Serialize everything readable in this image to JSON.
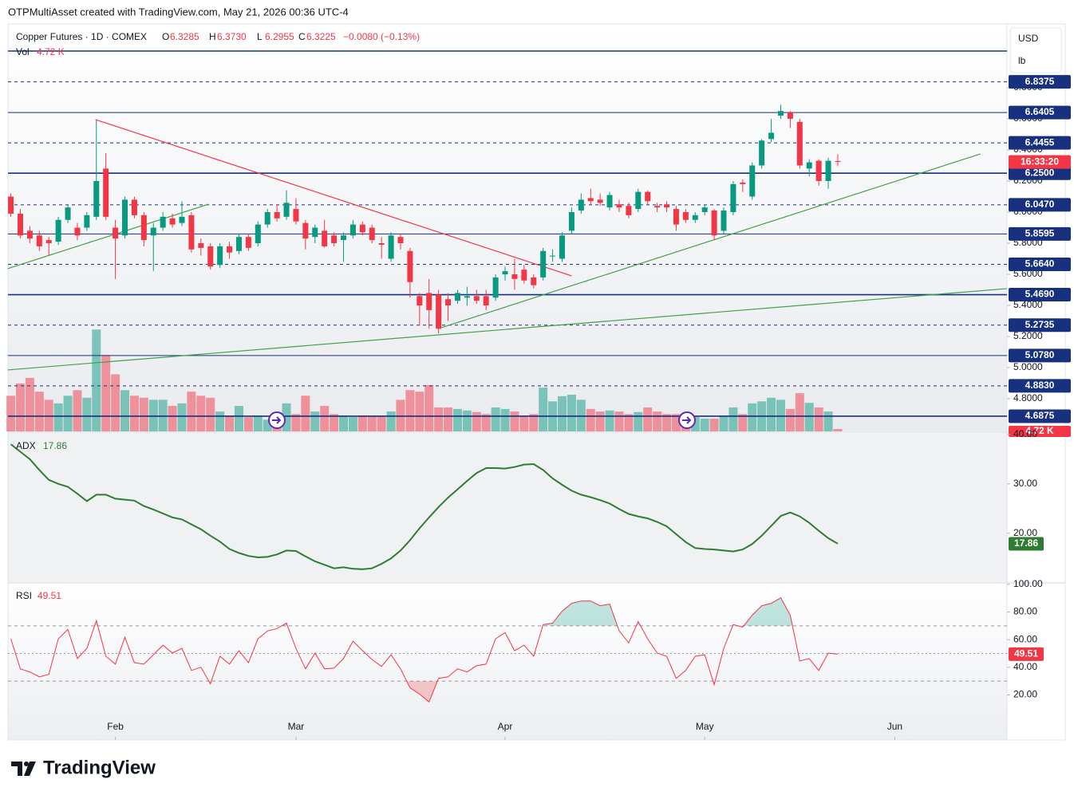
{
  "header": {
    "credit": "OTPMultiAsset created with TradingView.com, May 21, 2026 00:36 UTC-4",
    "symbol": "Copper Futures · 1D · COMEX",
    "ohlc": [
      {
        "key": "O",
        "value": "6.3285"
      },
      {
        "key": "H",
        "value": "6.3730"
      },
      {
        "key": "L",
        "value": "6.2955"
      },
      {
        "key": "C",
        "value": "6.3225"
      }
    ],
    "change": "−0.0080 (−0.13%)",
    "currency": "USD",
    "unit": "lb",
    "countdown": "16:33:20",
    "logo": "TradingView"
  },
  "chart_data": [
    {
      "type": "candlestick",
      "up_color": "#089981",
      "down_color": "#f23645",
      "ylim": [
        4.59,
        7.21
      ],
      "xlim": [
        -0.3,
        104.8
      ],
      "yticks": [
        {
          "value": 4.8,
          "label": "4.8000"
        },
        {
          "value": 5.0,
          "label": "5.0000"
        },
        {
          "value": 5.2,
          "label": "5.2000"
        },
        {
          "value": 5.4,
          "label": "5.4000"
        },
        {
          "value": 5.6,
          "label": "5.6000"
        },
        {
          "value": 5.8,
          "label": "5.8000"
        },
        {
          "value": 6.0,
          "label": "6.0000"
        },
        {
          "value": 6.2,
          "label": "6.2000"
        },
        {
          "value": 6.4,
          "label": "6.4000"
        },
        {
          "value": 6.6,
          "label": "6.6000"
        },
        {
          "value": 6.8,
          "label": "6.8000"
        }
      ],
      "xticks": [
        {
          "value": 11,
          "label": "Feb"
        },
        {
          "value": 30,
          "label": "Mar"
        },
        {
          "value": 52,
          "label": "Apr"
        },
        {
          "value": 73,
          "label": "May"
        },
        {
          "value": 93,
          "label": "Jun"
        }
      ],
      "level_color": "#17317f",
      "levels": [
        {
          "value": 6.8375,
          "style": "dashed"
        },
        {
          "value": 6.6405,
          "style": "solid"
        },
        {
          "value": 6.4455,
          "style": "dashed"
        },
        {
          "value": 6.25,
          "label": "6.2500",
          "style": "bold"
        },
        {
          "value": 6.047,
          "label": "6.0470",
          "style": "dashed"
        },
        {
          "value": 5.8595,
          "style": "solid"
        },
        {
          "value": 5.664,
          "label": "5.6640",
          "style": "dashed"
        },
        {
          "value": 5.469,
          "label": "5.4690",
          "style": "bold"
        },
        {
          "value": 5.2735,
          "style": "dashed"
        },
        {
          "value": 5.078,
          "label": "5.0780",
          "style": "solid"
        },
        {
          "value": 4.883,
          "label": "4.8830",
          "style": "dashed"
        },
        {
          "value": 4.6875,
          "style": "bold"
        }
      ],
      "trendlines": [
        {
          "color": "#f23645",
          "from": [
            8.9,
            6.595
          ],
          "to": [
            59,
            5.59
          ]
        },
        {
          "color": "#43a047",
          "from": [
            -0.34,
            5.636
          ],
          "to": [
            20.8,
            6.051
          ]
        },
        {
          "color": "#43a047",
          "from": [
            45,
            5.251
          ],
          "to": [
            102,
            6.374
          ]
        },
        {
          "color": "#43a047",
          "from": [
            -0.34,
            4.985
          ],
          "to": [
            104.8,
            5.508
          ]
        }
      ],
      "ohlc": [
        [
          6.1,
          6.12,
          5.97,
          5.99
        ],
        [
          5.99,
          6.02,
          5.83,
          5.85
        ],
        [
          5.88,
          5.91,
          5.8,
          5.83
        ],
        [
          5.85,
          5.88,
          5.75,
          5.78
        ],
        [
          5.82,
          5.84,
          5.72,
          5.8
        ],
        [
          5.81,
          5.97,
          5.79,
          5.95
        ],
        [
          5.95,
          6.05,
          5.93,
          6.03
        ],
        [
          5.9,
          5.93,
          5.82,
          5.85
        ],
        [
          5.9,
          6.0,
          5.88,
          5.98
        ],
        [
          5.97,
          6.59,
          5.95,
          6.2
        ],
        [
          6.28,
          6.38,
          5.95,
          5.97
        ],
        [
          5.9,
          5.95,
          5.57,
          5.83
        ],
        [
          5.85,
          6.1,
          5.83,
          6.08
        ],
        [
          6.08,
          6.1,
          5.96,
          5.98
        ],
        [
          5.98,
          6.0,
          5.78,
          5.82
        ],
        [
          5.85,
          5.93,
          5.62,
          5.9
        ],
        [
          5.9,
          6.0,
          5.88,
          5.97
        ],
        [
          5.96,
          5.99,
          5.9,
          5.92
        ],
        [
          5.93,
          6.07,
          5.91,
          5.97
        ],
        [
          5.98,
          6.0,
          5.74,
          5.76
        ],
        [
          5.8,
          5.83,
          5.72,
          5.77
        ],
        [
          5.78,
          5.8,
          5.63,
          5.65
        ],
        [
          5.66,
          5.8,
          5.64,
          5.78
        ],
        [
          5.78,
          5.81,
          5.7,
          5.74
        ],
        [
          5.75,
          5.86,
          5.73,
          5.84
        ],
        [
          5.84,
          5.86,
          5.75,
          5.77
        ],
        [
          5.8,
          5.94,
          5.78,
          5.92
        ],
        [
          5.92,
          6.02,
          5.9,
          6.0
        ],
        [
          6.0,
          6.05,
          5.94,
          5.96
        ],
        [
          5.97,
          6.14,
          5.95,
          6.06
        ],
        [
          6.02,
          6.09,
          5.92,
          5.94
        ],
        [
          5.93,
          5.95,
          5.76,
          5.83
        ],
        [
          5.84,
          5.92,
          5.8,
          5.9
        ],
        [
          5.88,
          5.95,
          5.77,
          5.78
        ],
        [
          5.85,
          5.87,
          5.78,
          5.8
        ],
        [
          5.82,
          5.87,
          5.68,
          5.85
        ],
        [
          5.85,
          5.95,
          5.83,
          5.92
        ],
        [
          5.92,
          5.94,
          5.85,
          5.87
        ],
        [
          5.9,
          5.92,
          5.8,
          5.82
        ],
        [
          5.8,
          5.84,
          5.7,
          5.79
        ],
        [
          5.7,
          5.87,
          5.68,
          5.85
        ],
        [
          5.84,
          5.86,
          5.76,
          5.8
        ],
        [
          5.75,
          5.77,
          5.45,
          5.55
        ],
        [
          5.46,
          5.48,
          5.27,
          5.4
        ],
        [
          5.48,
          5.57,
          5.25,
          5.37
        ],
        [
          5.47,
          5.5,
          5.22,
          5.25
        ],
        [
          5.44,
          5.48,
          5.3,
          5.4
        ],
        [
          5.43,
          5.5,
          5.41,
          5.48
        ],
        [
          5.45,
          5.52,
          5.4,
          5.46
        ],
        [
          5.46,
          5.5,
          5.41,
          5.43
        ],
        [
          5.46,
          5.5,
          5.37,
          5.4
        ],
        [
          5.45,
          5.6,
          5.43,
          5.58
        ],
        [
          5.6,
          5.65,
          5.56,
          5.62
        ],
        [
          5.6,
          5.7,
          5.5,
          5.57
        ],
        [
          5.63,
          5.66,
          5.54,
          5.56
        ],
        [
          5.58,
          5.6,
          5.51,
          5.53
        ],
        [
          5.58,
          5.77,
          5.56,
          5.75
        ],
        [
          5.72,
          5.76,
          5.68,
          5.72
        ],
        [
          5.7,
          5.87,
          5.68,
          5.85
        ],
        [
          5.88,
          6.03,
          5.86,
          6.0
        ],
        [
          6.01,
          6.12,
          5.99,
          6.08
        ],
        [
          6.09,
          6.15,
          6.05,
          6.07
        ],
        [
          6.08,
          6.12,
          6.04,
          6.06
        ],
        [
          6.03,
          6.13,
          6.01,
          6.11
        ],
        [
          6.05,
          6.08,
          6.0,
          6.03
        ],
        [
          6.04,
          6.06,
          5.96,
          5.98
        ],
        [
          6.02,
          6.15,
          6.0,
          6.13
        ],
        [
          6.13,
          6.14,
          6.05,
          6.07
        ],
        [
          6.04,
          6.06,
          6.0,
          6.03
        ],
        [
          6.05,
          6.07,
          6.0,
          6.03
        ],
        [
          6.02,
          6.04,
          5.88,
          5.92
        ],
        [
          6.0,
          6.02,
          5.93,
          5.95
        ],
        [
          5.95,
          6.0,
          5.93,
          5.98
        ],
        [
          6.0,
          6.05,
          5.98,
          6.03
        ],
        [
          6.01,
          6.02,
          5.82,
          5.85
        ],
        [
          5.88,
          6.03,
          5.86,
          6.01
        ],
        [
          6.0,
          6.2,
          5.98,
          6.18
        ],
        [
          6.19,
          6.21,
          6.13,
          6.18
        ],
        [
          6.1,
          6.32,
          6.08,
          6.3
        ],
        [
          6.3,
          6.47,
          6.28,
          6.46
        ],
        [
          6.47,
          6.6,
          6.45,
          6.51
        ],
        [
          6.62,
          6.69,
          6.6,
          6.65
        ],
        [
          6.64,
          6.65,
          6.54,
          6.6
        ],
        [
          6.58,
          6.6,
          6.28,
          6.3
        ],
        [
          6.28,
          6.34,
          6.23,
          6.32
        ],
        [
          6.33,
          6.34,
          6.17,
          6.2
        ],
        [
          6.2,
          6.35,
          6.15,
          6.33
        ],
        [
          6.3285,
          6.373,
          6.2955,
          6.3225
        ]
      ]
    },
    {
      "type": "bar",
      "title": "Vol",
      "ylim": [
        0,
        800
      ],
      "opacity": 0.5,
      "values": [
        70,
        94,
        105,
        78,
        62,
        55,
        70,
        81,
        66,
        200,
        150,
        112,
        81,
        70,
        66,
        62,
        62,
        50,
        55,
        78,
        70,
        66,
        39,
        31,
        50,
        28,
        31,
        23,
        19,
        55,
        34,
        70,
        39,
        50,
        34,
        31,
        28,
        31,
        31,
        31,
        39,
        62,
        81,
        78,
        91,
        47,
        47,
        44,
        41,
        38,
        34,
        47,
        44,
        39,
        31,
        34,
        86,
        59,
        69,
        72,
        62,
        44,
        39,
        41,
        39,
        34,
        38,
        47,
        39,
        34,
        34,
        31,
        28,
        25,
        25,
        31,
        47,
        34,
        55,
        59,
        66,
        62,
        44,
        75,
        56,
        47,
        39,
        4.72
      ],
      "value_labels": [
        null,
        null,
        null,
        null,
        null,
        null,
        null,
        null,
        null,
        null,
        null,
        null,
        null,
        null,
        null,
        null,
        null,
        null,
        null,
        null,
        null,
        null,
        null,
        null,
        null,
        null,
        null,
        null,
        null,
        null,
        null,
        null,
        null,
        null,
        null,
        null,
        null,
        null,
        null,
        null,
        null,
        null,
        null,
        null,
        null,
        null,
        null,
        null,
        null,
        null,
        null,
        null,
        null,
        null,
        null,
        null,
        null,
        null,
        null,
        null,
        null,
        null,
        null,
        null,
        null,
        null,
        null,
        null,
        null,
        null,
        null,
        null,
        null,
        null,
        null,
        null,
        null,
        null,
        null,
        null,
        null,
        null,
        null,
        null,
        null,
        null,
        null,
        "4.72 K"
      ]
    },
    {
      "type": "line",
      "title": "ADX",
      "color": "#2e7d32",
      "ylim": [
        10.1,
        40.3
      ],
      "yticks": [
        {
          "value": 20,
          "label": "20.00"
        },
        {
          "value": 30,
          "label": "30.00"
        },
        {
          "value": 40,
          "label": "40.00"
        }
      ],
      "values": [
        38.0,
        36.5,
        35.0,
        32.8,
        30.8,
        30.0,
        29.4,
        28.0,
        26.5,
        27.8,
        27.8,
        27.0,
        26.8,
        26.6,
        25.5,
        24.8,
        24.0,
        23.2,
        22.8,
        21.8,
        20.8,
        19.5,
        18.3,
        16.8,
        16.0,
        15.4,
        15.1,
        15.2,
        15.7,
        16.5,
        16.4,
        15.3,
        14.3,
        13.6,
        12.9,
        13.1,
        12.8,
        12.7,
        12.9,
        13.8,
        14.9,
        16.5,
        18.6,
        21.0,
        23.2,
        25.3,
        27.2,
        28.9,
        30.6,
        32.2,
        33.2,
        33.2,
        33.1,
        33.4,
        33.9,
        34.0,
        32.8,
        31.1,
        29.8,
        28.6,
        27.8,
        27.3,
        26.7,
        26.0,
        24.9,
        23.9,
        23.4,
        23.0,
        22.3,
        21.4,
        19.8,
        18.2,
        17.0,
        16.8,
        16.7,
        16.5,
        16.3,
        16.7,
        17.8,
        19.5,
        21.5,
        23.5,
        24.2,
        23.4,
        22.1,
        20.5,
        19.0,
        17.86
      ]
    },
    {
      "type": "line",
      "title": "RSI",
      "color": "#f23645",
      "ylim": [
        -12.6,
        100.5
      ],
      "overbought": 70,
      "middle": 50,
      "oversold": 30,
      "yticks": [
        {
          "value": 20,
          "label": "20.00"
        },
        {
          "value": 40,
          "label": "40.00"
        },
        {
          "value": 60,
          "label": "60.00"
        },
        {
          "value": 80,
          "label": "80.00"
        },
        {
          "value": 100,
          "label": "100.00"
        }
      ],
      "values": [
        60.6,
        38.9,
        36.6,
        33.1,
        34.9,
        60.6,
        67.4,
        46.3,
        53.7,
        73.7,
        48.0,
        42.3,
        61.7,
        43.4,
        42.3,
        49.1,
        56.0,
        50.3,
        53.7,
        37.7,
        40.0,
        28.0,
        48.0,
        42.3,
        52.0,
        43.4,
        60.6,
        66.3,
        68.0,
        72.0,
        53.7,
        38.9,
        50.3,
        38.9,
        39.4,
        46.3,
        58.9,
        52.0,
        45.7,
        40.6,
        49.1,
        38.9,
        25.1,
        20.6,
        14.9,
        32.0,
        33.1,
        38.9,
        36.6,
        41.1,
        42.3,
        60.6,
        65.1,
        52.0,
        56.0,
        48.0,
        70.9,
        72.0,
        80.6,
        86.3,
        88.0,
        88.0,
        84.6,
        85.7,
        66.3,
        57.7,
        73.1,
        60.6,
        50.3,
        48.0,
        32.0,
        37.7,
        48.0,
        49.1,
        27.4,
        53.7,
        70.9,
        69.1,
        77.7,
        84.6,
        86.3,
        90.3,
        77.7,
        44.6,
        46.3,
        37.7,
        50.3,
        49.51
      ]
    }
  ]
}
